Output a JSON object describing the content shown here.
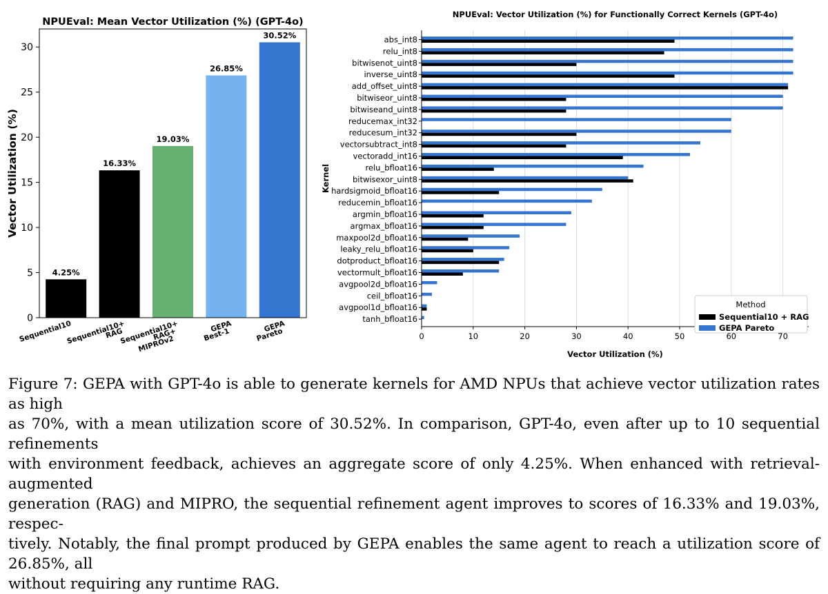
{
  "chart_data": [
    {
      "type": "bar",
      "title": "NPUEval: Mean Vector Utilization (%) (GPT-4o)",
      "xlabel": "",
      "ylabel": "Vector Utilization (%)",
      "ylim": [
        0,
        32
      ],
      "yticks": [
        0,
        5,
        10,
        15,
        20,
        25,
        30
      ],
      "grid": false,
      "categories": [
        [
          "Sequential10"
        ],
        [
          "Sequential10+",
          "RAG"
        ],
        [
          "Sequential10+",
          "RAG+",
          "MIPROv2"
        ],
        [
          "GEPA",
          "Best-1"
        ],
        [
          "GEPA",
          "Pareto"
        ]
      ],
      "values": [
        4.25,
        16.33,
        19.03,
        26.85,
        30.52
      ],
      "data_labels": [
        "4.25%",
        "16.33%",
        "19.03%",
        "26.85%",
        "30.52%"
      ],
      "colors": [
        "#000000",
        "#000000",
        "#66b172",
        "#77b1ef",
        "#3575d0"
      ]
    },
    {
      "type": "bar",
      "orientation": "horizontal",
      "title": "NPUEval: Vector Utilization (%) for Functionally Correct Kernels (GPT-4o)",
      "xlabel": "Vector Utilization (%)",
      "ylabel": "Kernel",
      "xlim": [
        0,
        75
      ],
      "xticks": [
        0,
        10,
        20,
        30,
        40,
        50,
        60,
        70
      ],
      "grid": "vertical",
      "legend_title": "Method",
      "legend_position": "lower-right",
      "categories": [
        "abs_int8",
        "relu_int8",
        "bitwisenot_uint8",
        "inverse_uint8",
        "add_offset_uint8",
        "bitwiseor_uint8",
        "bitwiseand_uint8",
        "reducemax_int32",
        "reducesum_int32",
        "vectorsubtract_int8",
        "vectoradd_int16",
        "relu_bfloat16",
        "bitwisexor_uint8",
        "hardsigmoid_bfloat16",
        "reducemin_bfloat16",
        "argmin_bfloat16",
        "argmax_bfloat16",
        "maxpool2d_bfloat16",
        "leaky_relu_bfloat16",
        "dotproduct_bfloat16",
        "vectormult_bfloat16",
        "avgpool2d_bfloat16",
        "ceil_bfloat16",
        "avgpool1d_bfloat16",
        "tanh_bfloat16"
      ],
      "series": [
        {
          "name": "Sequential10 + RAG",
          "color": "#000000",
          "values": [
            49,
            47,
            30,
            49,
            71,
            28,
            28,
            0,
            30,
            28,
            39,
            14,
            41,
            15,
            0,
            12,
            12,
            9,
            10,
            15,
            8,
            0,
            0,
            1,
            0
          ]
        },
        {
          "name": "GEPA Pareto",
          "color": "#3575d0",
          "values": [
            72,
            72,
            72,
            72,
            71,
            70,
            70,
            60,
            60,
            54,
            52,
            43,
            40,
            35,
            33,
            29,
            28,
            19,
            17,
            16,
            15,
            3,
            2,
            1,
            0.5
          ]
        }
      ]
    }
  ],
  "caption": [
    "Figure 7: GEPA with GPT-4o is able to generate kernels for AMD NPUs that achieve vector utilization rates as high",
    "as 70%, with a mean utilization score of 30.52%. In comparison, GPT-4o, even after up to 10 sequential refinements",
    "with environment feedback, achieves an aggregate score of only 4.25%.  When enhanced with retrieval-augmented",
    "generation (RAG) and MIPRO, the sequential refinement agent improves to scores of 16.33% and 19.03%, respec-",
    "tively. Notably, the final prompt produced by GEPA enables the same agent to reach a utilization score of 26.85%, all",
    "without requiring any runtime RAG."
  ]
}
